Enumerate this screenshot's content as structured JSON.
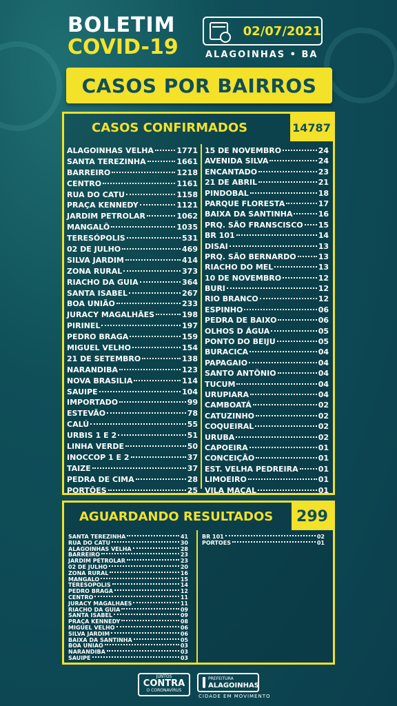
{
  "header": {
    "title_line1": "BOLETIM",
    "title_line2": "COVID-19",
    "date": "02/07/2021",
    "city": "ALAGOINHAS • BA",
    "banner": "CASOS POR BAIRROS"
  },
  "confirmed": {
    "label": "CASOS CONFIRMADOS",
    "total": "14787",
    "left": [
      {
        "name": "ALAGOINHAS VELHA",
        "value": "1771"
      },
      {
        "name": "SANTA TEREZINHA",
        "value": "1661"
      },
      {
        "name": "BARREIRO",
        "value": "1218"
      },
      {
        "name": "CENTRO",
        "value": "1161"
      },
      {
        "name": "RUA DO CATU",
        "value": "1158"
      },
      {
        "name": "PRAÇA KENNEDY",
        "value": "1121"
      },
      {
        "name": "JARDIM PETROLAR",
        "value": "1062"
      },
      {
        "name": "MANGALÔ",
        "value": "1035"
      },
      {
        "name": "TERESÓPOLIS",
        "value": "531"
      },
      {
        "name": "02 DE JULHO",
        "value": "469"
      },
      {
        "name": "SILVA JARDIM",
        "value": "414"
      },
      {
        "name": "ZONA RURAL",
        "value": "373"
      },
      {
        "name": "RIACHO DA GUIA",
        "value": "364"
      },
      {
        "name": "SANTA ISABEL",
        "value": "267"
      },
      {
        "name": "BOA UNIÃO",
        "value": "233"
      },
      {
        "name": "JURACY MAGALHÃES",
        "value": "198"
      },
      {
        "name": "PIRINEL",
        "value": "197"
      },
      {
        "name": "PEDRO BRAGA",
        "value": "159"
      },
      {
        "name": "MIGUEL VELHO",
        "value": "154"
      },
      {
        "name": "21 DE SETEMBRO",
        "value": "138"
      },
      {
        "name": "NARANDIBA",
        "value": "123"
      },
      {
        "name": "NOVA BRASILIA",
        "value": "114"
      },
      {
        "name": "SAUIPE",
        "value": "104"
      },
      {
        "name": "IMPORTADO",
        "value": "99"
      },
      {
        "name": "ESTEVÃO",
        "value": "78"
      },
      {
        "name": "CALÚ",
        "value": "55"
      },
      {
        "name": "URBIS 1 E 2",
        "value": "51"
      },
      {
        "name": "LINHA VERDE",
        "value": "50"
      },
      {
        "name": "INOCCOP 1 E 2",
        "value": "37"
      },
      {
        "name": "TAIZE",
        "value": "37"
      },
      {
        "name": "PEDRA DE CIMA",
        "value": "28"
      },
      {
        "name": "PORTÕES",
        "value": "25"
      }
    ],
    "right": [
      {
        "name": "15 DE NOVEMBRO",
        "value": "24"
      },
      {
        "name": "AVENIDA SILVA",
        "value": "24"
      },
      {
        "name": "ENCANTADO",
        "value": "23"
      },
      {
        "name": "21 DE ABRIL",
        "value": "21"
      },
      {
        "name": "PINDOBAL",
        "value": "18"
      },
      {
        "name": "PARQUE FLORESTA",
        "value": "17"
      },
      {
        "name": "BAIXA DA SANTINHA",
        "value": "16"
      },
      {
        "name": "PRQ. SÃO FRANSCISCO",
        "value": "15"
      },
      {
        "name": "BR 101",
        "value": "14"
      },
      {
        "name": "DISAI",
        "value": "13"
      },
      {
        "name": "PRQ. SÃO BERNARDO",
        "value": "13"
      },
      {
        "name": "RIACHO DO MEL",
        "value": "13"
      },
      {
        "name": "10 DE NOVEMBRO",
        "value": "12"
      },
      {
        "name": "BURI",
        "value": "12"
      },
      {
        "name": "RIO BRANCO",
        "value": "12"
      },
      {
        "name": "ESPINHO",
        "value": "06"
      },
      {
        "name": "PEDRA DE BAIXO",
        "value": "06"
      },
      {
        "name": "OLHOS D ÁGUA",
        "value": "05"
      },
      {
        "name": "PONTO DO BEIJU",
        "value": "05"
      },
      {
        "name": "BURACICA",
        "value": "04"
      },
      {
        "name": "PAPAGAIO",
        "value": "04"
      },
      {
        "name": "SANTO ANTÔNIO",
        "value": "04"
      },
      {
        "name": "TUCUM",
        "value": "04"
      },
      {
        "name": "URUPIARA",
        "value": "04"
      },
      {
        "name": "CAMBOATÁ",
        "value": "02"
      },
      {
        "name": "CATUZINHO",
        "value": "02"
      },
      {
        "name": "COQUEIRAL",
        "value": "02"
      },
      {
        "name": "URUBA",
        "value": "02"
      },
      {
        "name": "CAPOEIRA",
        "value": "01"
      },
      {
        "name": "CONCEIÇÃO",
        "value": "01"
      },
      {
        "name": "EST. VELHA PEDREIRA",
        "value": "01"
      },
      {
        "name": "LIMOEIRO",
        "value": "01"
      },
      {
        "name": "VILA MAÇAL",
        "value": "01"
      }
    ]
  },
  "awaiting": {
    "label": "AGUARDANDO RESULTADOS",
    "total": "299",
    "left": [
      {
        "name": "SANTA TEREZINHA",
        "value": "41"
      },
      {
        "name": "RUA DO CATU",
        "value": "30"
      },
      {
        "name": "ALAGOINHAS VELHA",
        "value": "28"
      },
      {
        "name": "BARREIRO",
        "value": "23"
      },
      {
        "name": "JARDIM PETROLAR",
        "value": "23"
      },
      {
        "name": "02 DE JULHO",
        "value": "20"
      },
      {
        "name": "ZONA RURAL",
        "value": "16"
      },
      {
        "name": "MANGALO",
        "value": "15"
      },
      {
        "name": "TERESOPOLIS",
        "value": "14"
      },
      {
        "name": "PEDRO BRAGA",
        "value": "12"
      },
      {
        "name": "CENTRO",
        "value": "11"
      },
      {
        "name": "JURACY MAGALHAES",
        "value": "11"
      },
      {
        "name": "RIACHO DA GUIA",
        "value": "09"
      },
      {
        "name": "SANTA ISABEL",
        "value": "09"
      },
      {
        "name": "PRAÇA KENNEDY",
        "value": "08"
      },
      {
        "name": "MIGUEL VELHO",
        "value": "06"
      },
      {
        "name": "SILVA JARDIM",
        "value": "06"
      },
      {
        "name": "BAIXA DA SANTINHA",
        "value": "05"
      },
      {
        "name": "BOA UNIAO",
        "value": "03"
      },
      {
        "name": "NARANDIBA",
        "value": "03"
      },
      {
        "name": "SAUIPE",
        "value": "03"
      }
    ],
    "right": [
      {
        "name": "BR 101",
        "value": "02"
      },
      {
        "name": "PORTOES",
        "value": "01"
      }
    ]
  },
  "footer": {
    "logo1_top": "JUNTOS",
    "logo1_main": "CONTRA",
    "logo1_bottom": "O CORONAVÍRUS",
    "logo2_top": "PREFEITURA",
    "logo2_main": "ALAGOINHAS",
    "slogan": "CIDADE EM MOVIMENTO"
  }
}
